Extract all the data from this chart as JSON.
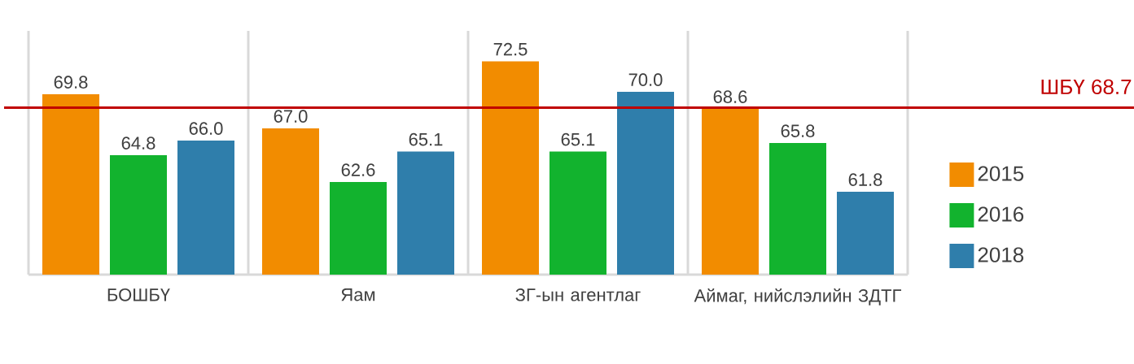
{
  "chart_data": {
    "type": "bar",
    "categories": [
      "БОШБҮ",
      "Яам",
      "ЗГ-ын агентлаг",
      "Аймаг, нийслэлийн ЗДТГ"
    ],
    "series": [
      {
        "name": "2015",
        "color": "#f28c00",
        "values": [
          69.8,
          67.0,
          72.5,
          68.6
        ],
        "value_labels": [
          "69.8",
          "67.0",
          "72.5",
          "68.6"
        ]
      },
      {
        "name": "2016",
        "color": "#12b32e",
        "values": [
          64.8,
          62.6,
          65.1,
          65.8
        ],
        "value_labels": [
          "64.8",
          "62.6",
          "65.1",
          "65.8"
        ]
      },
      {
        "name": "2018",
        "color": "#2f7eab",
        "values": [
          66.0,
          65.1,
          70.0,
          61.8
        ],
        "value_labels": [
          "66.0",
          "65.1",
          "70.0",
          "61.8"
        ]
      }
    ],
    "ylim": [
      55,
      75
    ],
    "tick_labels": "x",
    "grid": "x",
    "legend": "right",
    "ref_lines": [
      {
        "axis": "y",
        "value": 68.7,
        "label": "ШБҮ 68.7",
        "color": "#c00000"
      }
    ]
  }
}
